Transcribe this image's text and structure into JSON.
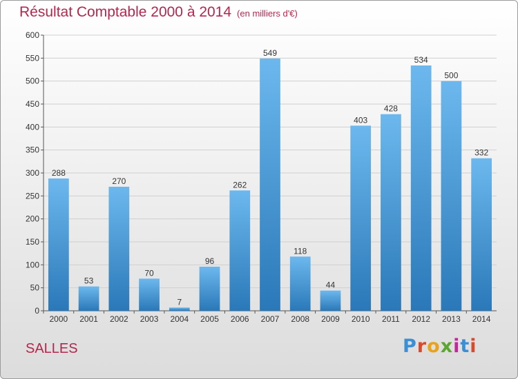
{
  "header": {
    "title": "Résultat Comptable 2000 à 2014",
    "unit": "(en milliers d'€)"
  },
  "commune": "SALLES",
  "logo": {
    "text": "Proxiti"
  },
  "colors": {
    "bar_top": "#6cb8ee",
    "bar_bottom": "#2a78b8",
    "title": "#b5264e"
  },
  "chart_data": {
    "type": "bar",
    "title": "Résultat Comptable 2000 à 2014",
    "xlabel": "",
    "ylabel": "",
    "ylim": [
      0,
      600
    ],
    "y_ticks": [
      0,
      50,
      100,
      150,
      200,
      250,
      300,
      350,
      400,
      450,
      500,
      550,
      600
    ],
    "grid": true,
    "categories": [
      "2000",
      "2001",
      "2002",
      "2003",
      "2004",
      "2005",
      "2006",
      "2007",
      "2008",
      "2009",
      "2010",
      "2011",
      "2012",
      "2013",
      "2014"
    ],
    "values": [
      288,
      53,
      270,
      70,
      7,
      96,
      262,
      549,
      118,
      44,
      403,
      428,
      534,
      500,
      332
    ]
  }
}
